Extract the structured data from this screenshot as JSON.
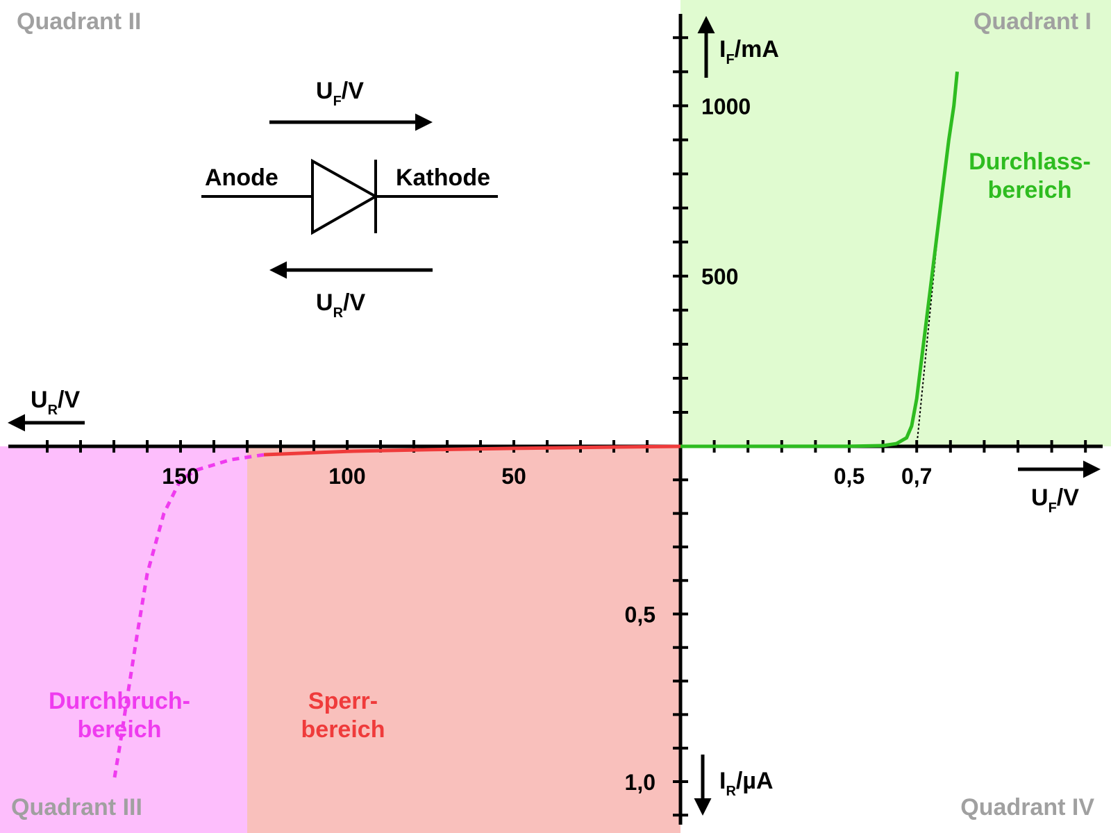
{
  "colors": {
    "forward_bg": "#e0fbd0",
    "reverse_bg": "#f9c0bc",
    "breakdown_bg": "#fdbefc",
    "forward_curve": "#2ebc20",
    "reverse_curve": "#ef3b3b",
    "breakdown_curve": "#ef3bef",
    "quadrant_text": "#a0a0a0"
  },
  "quadrants": {
    "q1": "Quadrant I",
    "q2": "Quadrant II",
    "q3": "Quadrant III",
    "q4": "Quadrant IV"
  },
  "diode": {
    "anode": "Anode",
    "kathode": "Kathode",
    "uf_label_main": "U",
    "uf_label_sub": "F",
    "uf_label_unit": "/V",
    "ur_label_main": "U",
    "ur_label_sub": "R",
    "ur_label_unit": "/V"
  },
  "axes": {
    "if_main": "I",
    "if_sub": "F",
    "if_unit": "/mA",
    "ir_main": "I",
    "ir_sub": "R",
    "ir_unit": "/µA",
    "uf_main": "U",
    "uf_sub": "F",
    "uf_unit": "/V",
    "ur_main": "U",
    "ur_sub": "R",
    "ur_unit": "/V"
  },
  "regions": {
    "forward_line1": "Durchlass-",
    "forward_line2": "bereich",
    "reverse_line1": "Sperr-",
    "reverse_line2": "bereich",
    "breakdown_line1": "Durchbruch-",
    "breakdown_line2": "bereich"
  },
  "chart_data": {
    "type": "line",
    "title": "",
    "forward": {
      "x_label": "UF/V",
      "y_label": "IF/mA",
      "x_ticks": [
        "0,5",
        "0,7"
      ],
      "x_tick_values": [
        0.5,
        0.7
      ],
      "y_ticks": [
        "500",
        "1000"
      ],
      "y_tick_values": [
        500,
        1000
      ],
      "x_range": [
        0,
        1.25
      ],
      "y_range": [
        0,
        1250
      ],
      "tangent_intercept": 0.7,
      "points": [
        [
          0,
          0
        ],
        [
          0.5,
          0.3
        ],
        [
          0.6,
          2
        ],
        [
          0.64,
          8
        ],
        [
          0.67,
          25
        ],
        [
          0.685,
          60
        ],
        [
          0.7,
          140
        ],
        [
          0.72,
          300
        ],
        [
          0.745,
          500
        ],
        [
          0.77,
          700
        ],
        [
          0.795,
          900
        ],
        [
          0.81,
          1000
        ],
        [
          0.82,
          1100
        ]
      ]
    },
    "reverse": {
      "x_label": "UR/V",
      "y_label": "IR/µA",
      "x_ticks": [
        "50",
        "100",
        "150"
      ],
      "x_tick_values": [
        50,
        100,
        150
      ],
      "y_ticks": [
        "0,5",
        "1,0"
      ],
      "y_tick_values": [
        0.5,
        1.0
      ],
      "x_range": [
        0,
        200
      ],
      "y_range": [
        0,
        1.1
      ],
      "points": [
        [
          0,
          0
        ],
        [
          25,
          0.003
        ],
        [
          50,
          0.006
        ],
        [
          75,
          0.01
        ],
        [
          100,
          0.015
        ],
        [
          125,
          0.025
        ]
      ],
      "breakdown_points": [
        [
          125,
          0.025
        ],
        [
          135,
          0.04
        ],
        [
          145,
          0.07
        ],
        [
          150,
          0.1
        ],
        [
          155,
          0.2
        ],
        [
          160,
          0.38
        ],
        [
          163,
          0.56
        ],
        [
          166,
          0.75
        ],
        [
          168,
          0.88
        ],
        [
          170,
          1.0
        ]
      ]
    }
  }
}
